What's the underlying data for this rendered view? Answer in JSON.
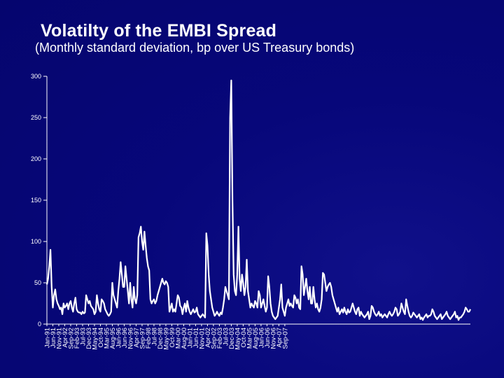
{
  "title": "Volatilty of the EMBI Spread",
  "subtitle": "(Monthly standard deviation, bp over US Treasury bonds)",
  "colors": {
    "background": "#07077a",
    "series": "#ffffff",
    "axis": "#ffffff",
    "text": "#ffffff"
  },
  "chart_data": {
    "type": "line",
    "title": "Volatilty of the EMBI Spread",
    "subtitle": "(Monthly standard deviation, bp over US Treasury bonds)",
    "xlabel": "",
    "ylabel": "",
    "ylim": [
      0,
      300
    ],
    "yticks": [
      0,
      50,
      100,
      150,
      200,
      250,
      300
    ],
    "grid": false,
    "legend": "none",
    "x_tick_labels": [
      "Jan-91",
      "Jun-91",
      "Nov-91",
      "Apr-92",
      "Sep-92",
      "Feb-93",
      "Jul-93",
      "Dec-93",
      "May-94",
      "Oct-94",
      "Mar-95",
      "Aug-95",
      "Jan-96",
      "Jun-96",
      "Nov-96",
      "Apr-97",
      "Sep-97",
      "Feb-98",
      "Jul-98",
      "Dec-98",
      "May-99",
      "Oct-99",
      "Mar-00",
      "Aug-00",
      "Jan-01",
      "Jun-01",
      "Nov-01",
      "Apr-02",
      "Sep-02",
      "Feb-03",
      "Jul-03",
      "Dec-03",
      "May-04",
      "Oct-04",
      "Mar-05",
      "Aug-05",
      "Jan-06",
      "Jun-06",
      "Nov-06",
      "Apr-07",
      "Sep-07"
    ],
    "series": [
      {
        "start": "Jan-91",
        "frequency": "monthly",
        "values": [
          48,
          55,
          70,
          90,
          45,
          20,
          35,
          42,
          30,
          25,
          22,
          18,
          20,
          12,
          25,
          20,
          22,
          25,
          18,
          25,
          28,
          20,
          15,
          25,
          32,
          18,
          15,
          14,
          14,
          12,
          15,
          13,
          14,
          35,
          30,
          25,
          28,
          22,
          20,
          18,
          12,
          15,
          35,
          25,
          18,
          15,
          30,
          28,
          25,
          18,
          15,
          12,
          10,
          12,
          15,
          50,
          35,
          30,
          25,
          20,
          40,
          55,
          75,
          60,
          45,
          45,
          70,
          55,
          40,
          25,
          50,
          30,
          20,
          45,
          30,
          25,
          35,
          105,
          110,
          118,
          100,
          90,
          112,
          95,
          80,
          70,
          65,
          30,
          25,
          28,
          30,
          25,
          28,
          35,
          40,
          45,
          50,
          55,
          50,
          48,
          52,
          50,
          45,
          15,
          20,
          25,
          15,
          18,
          15,
          25,
          35,
          32,
          22,
          20,
          12,
          20,
          25,
          15,
          28,
          20,
          15,
          12,
          15,
          18,
          14,
          15,
          20,
          12,
          10,
          8,
          10,
          12,
          10,
          8,
          110,
          95,
          60,
          40,
          30,
          20,
          15,
          10,
          12,
          15,
          12,
          10,
          14,
          12,
          20,
          30,
          45,
          40,
          35,
          30,
          250,
          295,
          150,
          60,
          40,
          35,
          60,
          118,
          55,
          40,
          60,
          50,
          35,
          45,
          78,
          40,
          30,
          20,
          25,
          22,
          20,
          28,
          25,
          20,
          40,
          35,
          20,
          25,
          30,
          22,
          15,
          20,
          58,
          45,
          25,
          15,
          10,
          8,
          6,
          8,
          10,
          20,
          30,
          48,
          20,
          15,
          10,
          20,
          25,
          30,
          22,
          25,
          22,
          20,
          35,
          32,
          25,
          30,
          20,
          18,
          70,
          60,
          35,
          45,
          55,
          40,
          30,
          45,
          25,
          25,
          45,
          30,
          20,
          25,
          18,
          15,
          20,
          30,
          62,
          60,
          50,
          40,
          45,
          48,
          50,
          45,
          35,
          30,
          25,
          20,
          15,
          20,
          12,
          15,
          18,
          14,
          20,
          15,
          12,
          18,
          14,
          15,
          20,
          25,
          20,
          15,
          12,
          18,
          20,
          10,
          15,
          12,
          10,
          8,
          10,
          12,
          15,
          6,
          10,
          22,
          20,
          15,
          12,
          10,
          12,
          15,
          10,
          12,
          8,
          10,
          12,
          10,
          8,
          12,
          15,
          12,
          10,
          12,
          15,
          20,
          18,
          10,
          12,
          15,
          25,
          20,
          15,
          12,
          30,
          22,
          15,
          10,
          8,
          10,
          14,
          12,
          10,
          8,
          10,
          12,
          6,
          8,
          5,
          8,
          10,
          12,
          8,
          10,
          10,
          12,
          18,
          15,
          10,
          8,
          6,
          8,
          10,
          12,
          6,
          8,
          10,
          12,
          15,
          10,
          8,
          6,
          8,
          10,
          12,
          15,
          8,
          10,
          5,
          8,
          8,
          10,
          12,
          15,
          20,
          18,
          15,
          15,
          18
        ]
      }
    ]
  }
}
